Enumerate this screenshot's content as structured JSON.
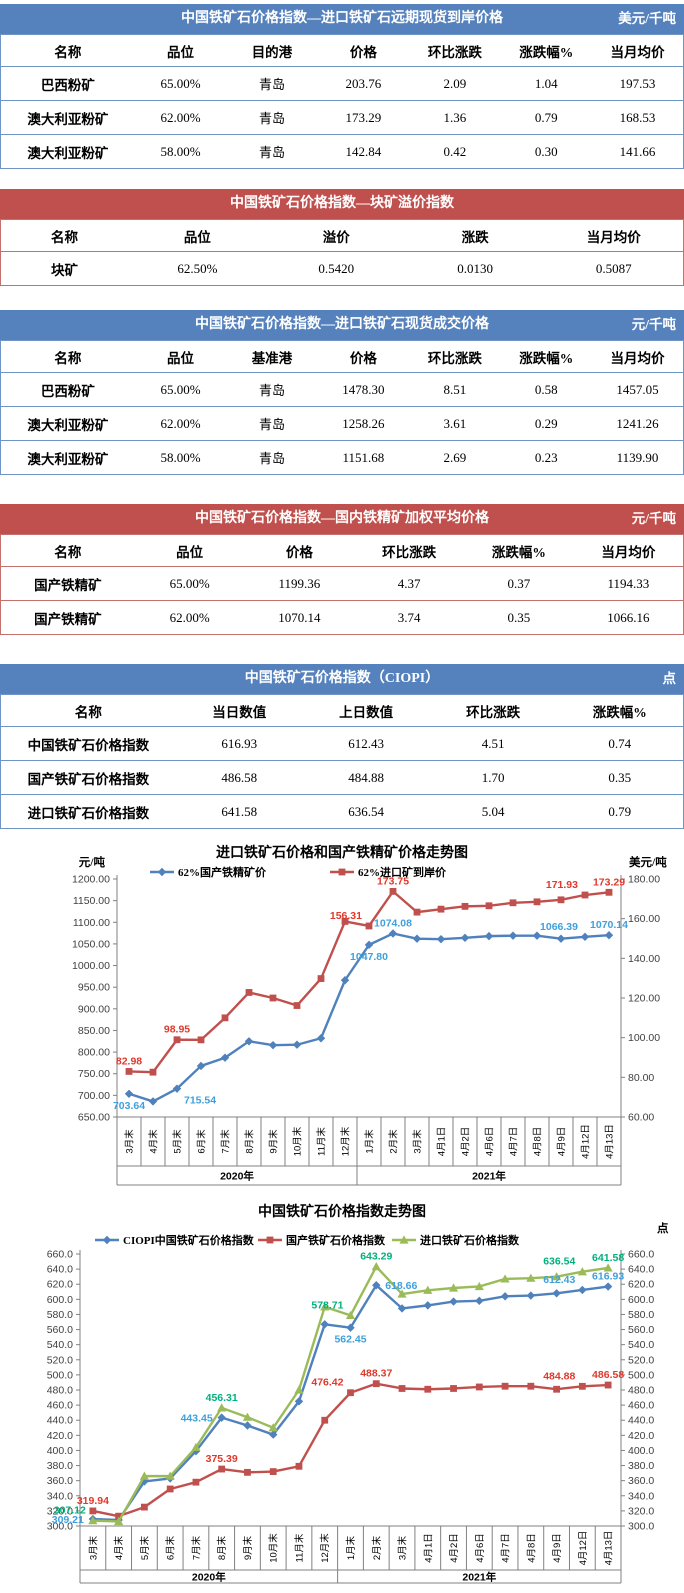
{
  "colors": {
    "blue_bar": "#5581BC",
    "blue_border": "#6E95C6",
    "red_bar": "#C0504D",
    "red_border": "#C4716E",
    "line_blue": "#4F81BD",
    "line_red": "#C0504D",
    "line_green": "#9BBB59",
    "label_blue": "#3FA0DC",
    "label_red": "#E0392B",
    "label_green": "#00B17C",
    "axis_text": "#404040",
    "axis_line": "#808080"
  },
  "tables": [
    {
      "theme": "blue",
      "title": "中国铁矿石价格指数—进口铁矿石远期现货到岸价格",
      "unit": "美元/千吨",
      "columns": [
        "名称",
        "品位",
        "目的港",
        "价格",
        "环比涨跌",
        "涨跌幅%",
        "当月均价"
      ],
      "rows": [
        [
          "巴西粉矿",
          "65.00%",
          "青岛",
          "203.76",
          "2.09",
          "1.04",
          "197.53"
        ],
        [
          "澳大利亚粉矿",
          "62.00%",
          "青岛",
          "173.29",
          "1.36",
          "0.79",
          "168.53"
        ],
        [
          "澳大利亚粉矿",
          "58.00%",
          "青岛",
          "142.84",
          "0.42",
          "0.30",
          "141.66"
        ]
      ]
    },
    {
      "theme": "red",
      "title": "中国铁矿石价格指数—块矿溢价指数",
      "unit": "",
      "columns": [
        "名称",
        "品位",
        "溢价",
        "涨跌",
        "当月均价"
      ],
      "rows": [
        [
          "块矿",
          "62.50%",
          "0.5420",
          "0.0130",
          "0.5087"
        ]
      ]
    },
    {
      "theme": "blue",
      "title": "中国铁矿石价格指数—进口铁矿石现货成交价格",
      "unit": "元/千吨",
      "columns": [
        "名称",
        "品位",
        "基准港",
        "价格",
        "环比涨跌",
        "涨跌幅%",
        "当月均价"
      ],
      "rows": [
        [
          "巴西粉矿",
          "65.00%",
          "青岛",
          "1478.30",
          "8.51",
          "0.58",
          "1457.05"
        ],
        [
          "澳大利亚粉矿",
          "62.00%",
          "青岛",
          "1258.26",
          "3.61",
          "0.29",
          "1241.26"
        ],
        [
          "澳大利亚粉矿",
          "58.00%",
          "青岛",
          "1151.68",
          "2.69",
          "0.23",
          "1139.90"
        ]
      ]
    },
    {
      "theme": "red",
      "title": "中国铁矿石价格指数—国内铁精矿加权平均价格",
      "unit": "元/千吨",
      "columns": [
        "名称",
        "品位",
        "价格",
        "环比涨跌",
        "涨跌幅%",
        "当月均价"
      ],
      "rows": [
        [
          "国产铁精矿",
          "65.00%",
          "1199.36",
          "4.37",
          "0.37",
          "1194.33"
        ],
        [
          "国产铁精矿",
          "62.00%",
          "1070.14",
          "3.74",
          "0.35",
          "1066.16"
        ]
      ]
    },
    {
      "theme": "blue",
      "title": "中国铁矿石价格指数（CIOPI）",
      "unit": "点",
      "columns": [
        "名称",
        "当日数值",
        "上日数值",
        "环比涨跌",
        "涨跌幅%"
      ],
      "rows": [
        [
          "中国铁矿石价格指数",
          "616.93",
          "612.43",
          "4.51",
          "0.74"
        ],
        [
          "国产铁矿石价格指数",
          "486.58",
          "484.88",
          "1.70",
          "0.35"
        ],
        [
          "进口铁矿石价格指数",
          "641.58",
          "636.54",
          "5.04",
          "0.79"
        ]
      ]
    }
  ],
  "chart_data": [
    {
      "type": "line",
      "title": "进口铁矿石价格和国产铁精矿价格走势图",
      "left_axis": {
        "unit": "元/吨",
        "min": 650,
        "max": 1200,
        "step": 50,
        "format": "2dp"
      },
      "right_axis": {
        "unit": "美元/吨",
        "min": 60,
        "max": 180,
        "step": 20,
        "format": "2dp"
      },
      "categories": [
        "3月末",
        "4月末",
        "5月末",
        "6月末",
        "7月末",
        "8月末",
        "9月末",
        "10月末",
        "11月末",
        "12月末",
        "1月末",
        "2月末",
        "3月末",
        "4月1日",
        "4月2日",
        "4月6日",
        "4月7日",
        "4月8日",
        "4月9日",
        "4月12日",
        "4月13日"
      ],
      "year_groups": [
        {
          "label": "2020年",
          "span": 10
        },
        {
          "label": "2021年",
          "span": 11
        }
      ],
      "legend_position": "top",
      "grid": false,
      "series": [
        {
          "name": "62%国产铁精矿价",
          "axis": "left",
          "color_key": "blue",
          "marker": "diamond",
          "values": [
            703.64,
            686.0,
            715.54,
            768.0,
            787.0,
            825.0,
            816.0,
            817.0,
            832.0,
            966.0,
            1047.8,
            1074.08,
            1062.0,
            1061.0,
            1064.0,
            1068.0,
            1069.0,
            1069.0,
            1062.0,
            1066.39,
            1070.14
          ],
          "point_labels": [
            {
              "i": 0,
              "text": "703.64",
              "pos": "below"
            },
            {
              "i": 2,
              "text": "715.54",
              "pos": "below-right"
            },
            {
              "i": 10,
              "text": "1047.80",
              "pos": "below"
            },
            {
              "i": 11,
              "text": "1074.08",
              "pos": "above"
            },
            {
              "i": 19,
              "text": "1066.39",
              "pos": "above-left"
            },
            {
              "i": 20,
              "text": "1070.14",
              "pos": "above"
            }
          ]
        },
        {
          "name": "62%进口矿到岸价",
          "axis": "right",
          "color_key": "red",
          "marker": "square",
          "values": [
            82.98,
            82.6,
            98.95,
            98.9,
            110.0,
            122.8,
            120.0,
            116.2,
            129.8,
            158.6,
            156.31,
            173.75,
            163.3,
            164.8,
            166.2,
            166.5,
            168.0,
            168.5,
            169.5,
            171.93,
            173.29
          ],
          "point_labels": [
            {
              "i": 0,
              "text": "82.98",
              "pos": "above"
            },
            {
              "i": 2,
              "text": "98.95",
              "pos": "above"
            },
            {
              "i": 10,
              "text": "156.31",
              "pos": "above-left"
            },
            {
              "i": 11,
              "text": "173.75",
              "pos": "above"
            },
            {
              "i": 19,
              "text": "171.93",
              "pos": "above-left"
            },
            {
              "i": 20,
              "text": "173.29",
              "pos": "above"
            }
          ]
        }
      ]
    },
    {
      "type": "line",
      "title": "中国铁矿石价格指数走势图",
      "left_axis": {
        "unit": "",
        "min": 300,
        "max": 660,
        "step": 20,
        "format": "1dp"
      },
      "right_axis": {
        "unit": "点",
        "min": 300,
        "max": 660,
        "step": 20,
        "format": "1dp"
      },
      "categories": [
        "3月末",
        "4月末",
        "5月末",
        "6月末",
        "7月末",
        "8月末",
        "9月末",
        "10月末",
        "11月末",
        "12月末",
        "1月末",
        "2月末",
        "3月末",
        "4月1日",
        "4月2日",
        "4月6日",
        "4月7日",
        "4月8日",
        "4月9日",
        "4月12日",
        "4月13日"
      ],
      "year_groups": [
        {
          "label": "2020年",
          "span": 10
        },
        {
          "label": "2021年",
          "span": 11
        }
      ],
      "legend_position": "top",
      "grid": false,
      "series": [
        {
          "name": "CIOPI中国铁矿石价格指数",
          "axis": "left",
          "color_key": "blue",
          "marker": "diamond",
          "values": [
            309.21,
            308.0,
            359.0,
            363.0,
            399.0,
            443.45,
            433.0,
            421.0,
            465.0,
            567.0,
            562.45,
            618.66,
            588.0,
            592.0,
            597.0,
            598.0,
            604.0,
            605.0,
            608.0,
            612.43,
            616.93
          ],
          "point_labels": [
            {
              "i": 0,
              "text": "309.21",
              "pos": "left"
            },
            {
              "i": 5,
              "text": "443.45",
              "pos": "left"
            },
            {
              "i": 10,
              "text": "562.45",
              "pos": "below"
            },
            {
              "i": 11,
              "text": "618.66",
              "pos": "right"
            },
            {
              "i": 19,
              "text": "612.43",
              "pos": "above-left"
            },
            {
              "i": 20,
              "text": "616.93",
              "pos": "above"
            }
          ]
        },
        {
          "name": "国产铁矿石价格指数",
          "axis": "left",
          "color_key": "red",
          "marker": "square",
          "values": [
            319.94,
            313.0,
            325.0,
            349.0,
            358.0,
            375.39,
            371.0,
            372.0,
            379.0,
            440.0,
            476.42,
            488.37,
            482.0,
            481.0,
            482.0,
            484.0,
            485.0,
            485.0,
            481.0,
            484.88,
            486.58
          ],
          "point_labels": [
            {
              "i": 0,
              "text": "319.94",
              "pos": "above"
            },
            {
              "i": 5,
              "text": "375.39",
              "pos": "above"
            },
            {
              "i": 10,
              "text": "476.42",
              "pos": "above-left"
            },
            {
              "i": 11,
              "text": "488.37",
              "pos": "above"
            },
            {
              "i": 19,
              "text": "484.88",
              "pos": "above-left"
            },
            {
              "i": 20,
              "text": "486.58",
              "pos": "above"
            }
          ]
        },
        {
          "name": "进口铁矿石价格指数",
          "axis": "left",
          "color_key": "green",
          "marker": "triangle",
          "values": [
            307.12,
            306.0,
            366.0,
            366.0,
            404.0,
            456.31,
            444.0,
            430.0,
            480.0,
            590.0,
            578.71,
            643.29,
            607.0,
            612.0,
            615.0,
            617.0,
            627.0,
            628.0,
            630.0,
            636.54,
            641.58
          ],
          "point_labels": [
            {
              "i": 0,
              "text": "307.12",
              "pos": "above-left"
            },
            {
              "i": 5,
              "text": "456.31",
              "pos": "above"
            },
            {
              "i": 10,
              "text": "578.71",
              "pos": "above-left"
            },
            {
              "i": 11,
              "text": "643.29",
              "pos": "above"
            },
            {
              "i": 19,
              "text": "636.54",
              "pos": "above-left"
            },
            {
              "i": 20,
              "text": "641.58",
              "pos": "above"
            }
          ]
        }
      ]
    }
  ]
}
